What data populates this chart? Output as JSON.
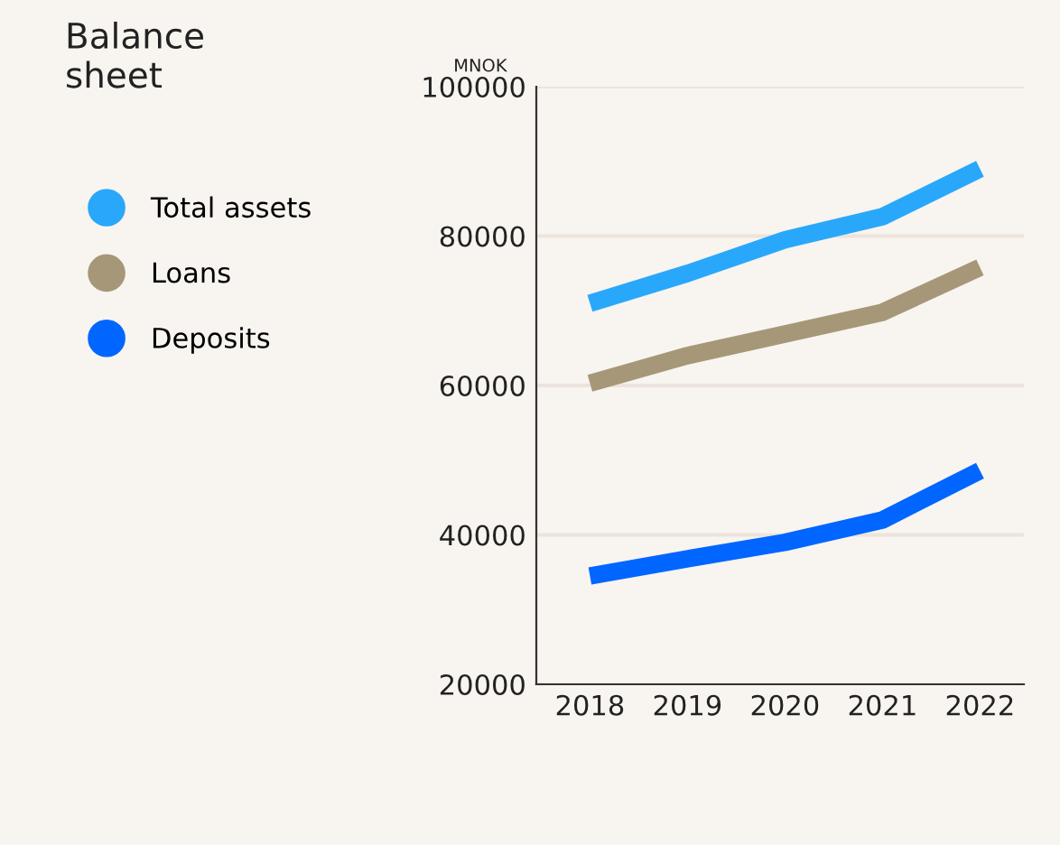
{
  "chart_data": {
    "type": "line",
    "title": "Balance sheet",
    "ylabel": "MNOK",
    "categories": [
      "2018",
      "2019",
      "2020",
      "2021",
      "2022"
    ],
    "series": [
      {
        "name": "Total assets",
        "color": "#29a8fb",
        "values": [
          71000,
          75000,
          79500,
          82600,
          89000
        ]
      },
      {
        "name": "Loans",
        "color": "#a69778",
        "values": [
          60300,
          64000,
          66900,
          69800,
          75800
        ]
      },
      {
        "name": "Deposits",
        "color": "#0066ff",
        "values": [
          34500,
          36800,
          39000,
          42000,
          48600
        ]
      }
    ],
    "ylim": [
      20000,
      100000
    ],
    "yticks": [
      20000,
      40000,
      60000,
      80000,
      100000
    ],
    "grid": "y",
    "legend": "left",
    "marker": "none",
    "line_style": "solid"
  }
}
